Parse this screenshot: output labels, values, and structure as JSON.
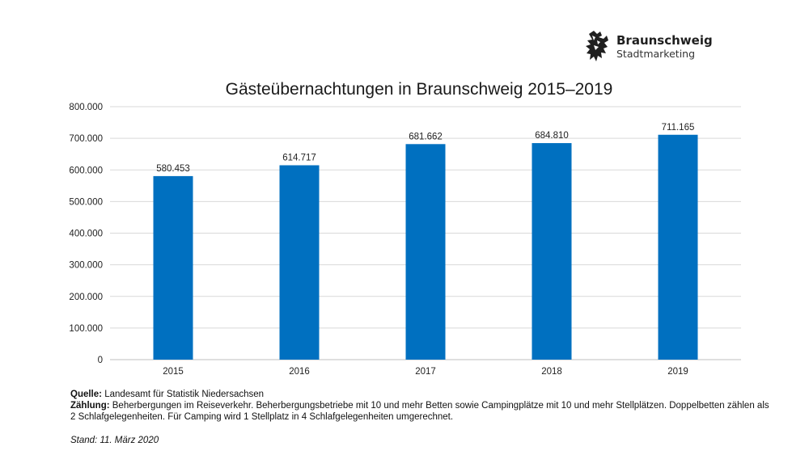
{
  "logo": {
    "name": "Braunschweig",
    "subtitle": "Stadtmarketing",
    "icon": "lion-icon"
  },
  "chart_data": {
    "type": "bar",
    "title": "Gästeübernachtungen in Braunschweig 2015–2019",
    "categories": [
      "2015",
      "2016",
      "2017",
      "2018",
      "2019"
    ],
    "values": [
      580453,
      614717,
      681662,
      684810,
      711165
    ],
    "value_labels": [
      "580.453",
      "614.717",
      "681.662",
      "684.810",
      "711.165"
    ],
    "ylim": [
      0,
      800000
    ],
    "yticks": [
      0,
      100000,
      200000,
      300000,
      400000,
      500000,
      600000,
      700000,
      800000
    ],
    "ytick_labels": [
      "0",
      "100.000",
      "200.000",
      "300.000",
      "400.000",
      "500.000",
      "600.000",
      "700.000",
      "800.000"
    ],
    "grid": true,
    "bar_color": "#0070c0",
    "xlabel": "",
    "ylabel": ""
  },
  "footer": {
    "source_label": "Quelle:",
    "source_text": "Landesamt für Statistik Niedersachsen",
    "count_label": "Zählung:",
    "count_text": "Beherbergungen im Reiseverkehr. Beherbergungsbetriebe mit 10 und mehr Betten sowie Campingplätze mit 10 und mehr Stellplätzen. Doppelbetten zählen als 2 Schlafgelegenheiten. Für Camping wird 1 Stellplatz in 4 Schlafgelegenheiten umgerechnet.",
    "stand": "Stand: 11. März 2020"
  }
}
